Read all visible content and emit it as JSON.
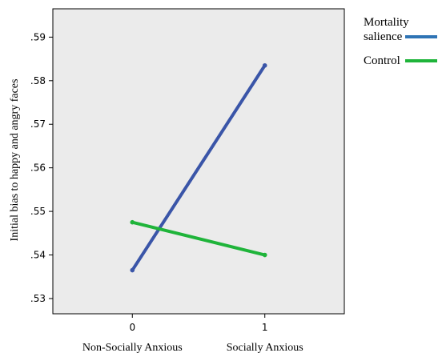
{
  "chart_data": {
    "type": "line",
    "ylabel": "Initial bias to happy and angry faces",
    "x": [
      0,
      1
    ],
    "x_tick_labels": [
      "0",
      "1"
    ],
    "x_category_labels": [
      "Non-Socially Anxious",
      "Socially Anxious"
    ],
    "xlim": [
      -0.6,
      1.6
    ],
    "ylim": [
      0.5265,
      0.5965
    ],
    "y_ticks": [
      0.53,
      0.54,
      0.55,
      0.56,
      0.57,
      0.58,
      0.59
    ],
    "y_tick_labels": [
      ".53",
      ".54",
      ".55",
      ".56",
      ".57",
      ".58",
      ".59"
    ],
    "grid": false,
    "legend_position": "outside-right-top",
    "series": [
      {
        "name": "Mortality salience",
        "values": [
          0.5365,
          0.5835
        ],
        "color": "#3a55a8",
        "legend_color": "#2f74b5"
      },
      {
        "name": "Control",
        "values": [
          0.5475,
          0.54
        ],
        "color": "#1fb43a",
        "legend_color": "#1fb43a"
      }
    ],
    "plot_background": "#ebebeb"
  }
}
